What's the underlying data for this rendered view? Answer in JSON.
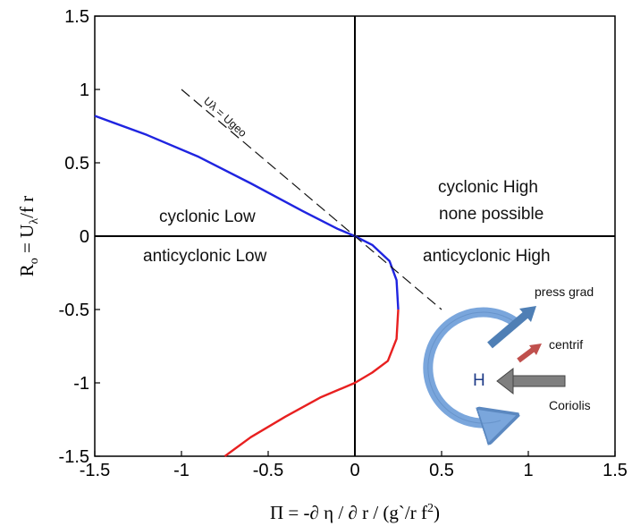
{
  "chart_data": {
    "type": "line",
    "xlim": [
      -1.5,
      1.5
    ],
    "ylim": [
      -1.5,
      1.5
    ],
    "x_ticks": [
      "-1.5",
      "-1",
      "-0.5",
      "0",
      "0.5",
      "1",
      "1.5"
    ],
    "y_ticks": [
      "1.5",
      "1",
      "0.5",
      "0",
      "-0.5",
      "-1",
      "-1.5"
    ],
    "xlabel": "Π = -∂ η / ∂ r / (g`/r f²)",
    "ylabel": "Ro = Uλ/f r",
    "grid": false,
    "series": [
      {
        "color": "#1f24e0",
        "x": [
          -1.5,
          -1.2,
          -0.9,
          -0.6,
          -0.3,
          -0.1,
          0,
          0.1,
          0.2,
          0.24,
          0.25
        ],
        "y": [
          0.82,
          0.69,
          0.54,
          0.36,
          0.17,
          0.05,
          0,
          -0.06,
          -0.17,
          -0.3,
          -0.5
        ]
      },
      {
        "color": "#e82020",
        "x": [
          0.25,
          0.24,
          0.19,
          0.1,
          0,
          -0.2,
          -0.4,
          -0.6,
          -0.75
        ],
        "y": [
          -0.5,
          -0.7,
          -0.85,
          -0.93,
          -1.0,
          -1.1,
          -1.23,
          -1.37,
          -1.5
        ]
      },
      {
        "color": "#111111",
        "dashed": true,
        "x": [
          -1.0,
          0.5
        ],
        "y": [
          1.0,
          -0.5
        ]
      }
    ],
    "annotations": {
      "dashed_line_label": "Uλ = Ugeo",
      "cyclonic_low": "cyclonic Low",
      "anticyclonic_low": "anticyclonic Low",
      "cyclonic_high": "cyclonic High",
      "none_possible": "none possible",
      "anticyclonic_high": "anticyclonic High"
    }
  },
  "inset": {
    "center_label": "H",
    "press_grad": "press grad",
    "centrif": "centrif",
    "coriolis": "Coriolis",
    "colors": {
      "ring": "#7aa6dc",
      "press_arrow": "#4f7fb5",
      "centrif_arrow": "#c0504d",
      "coriolis_arrow": "#7f7f7f"
    }
  }
}
